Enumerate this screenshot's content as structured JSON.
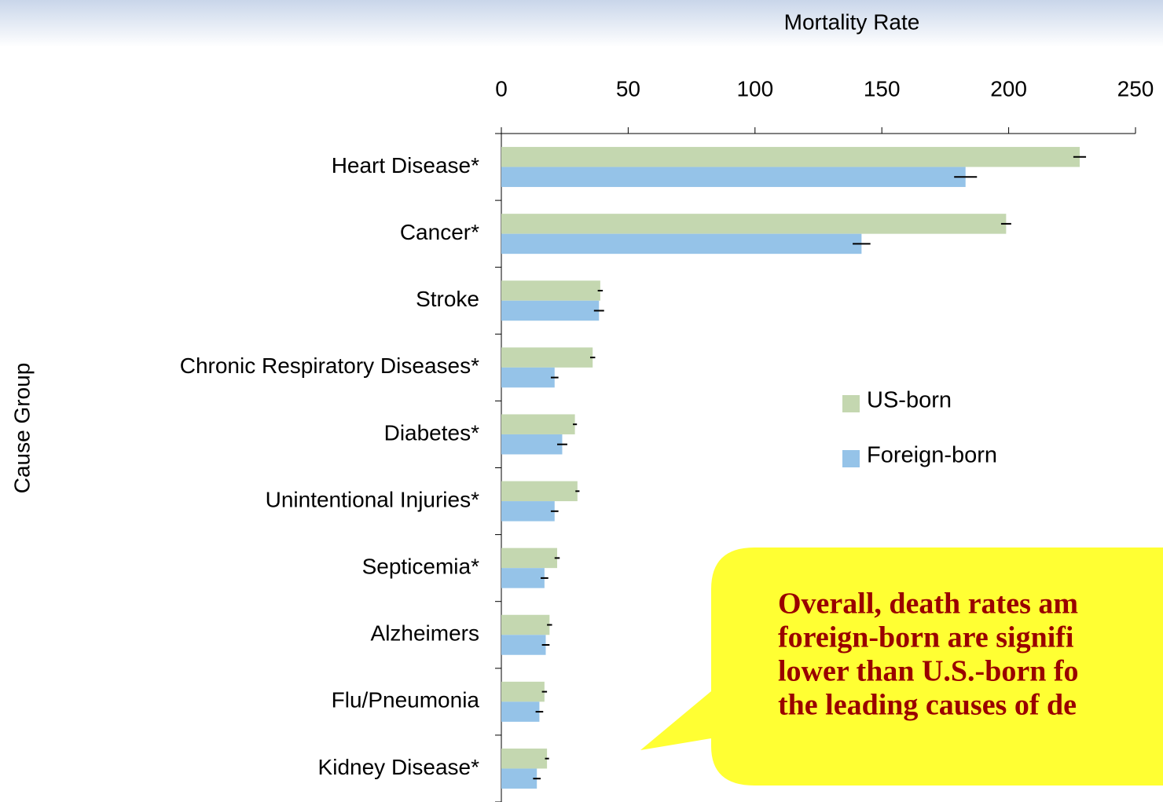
{
  "chart_data": {
    "type": "bar",
    "orientation": "horizontal",
    "xlabel": "Mortality Rate",
    "ylabel": "Cause Group",
    "categories": [
      "Heart Disease*",
      "Cancer*",
      "Stroke",
      "Chronic Respiratory Diseases*",
      "Diabetes*",
      "Unintentional Injuries*",
      "Septicemia*",
      "Alzheimers",
      "Flu/Pneumonia",
      "Kidney Disease*"
    ],
    "series": [
      {
        "name": "US-born",
        "color": "#c4d7b0",
        "values": [
          228,
          199,
          39,
          36,
          29,
          30,
          22,
          19,
          17,
          18
        ],
        "errors": [
          2.5,
          2,
          1,
          1,
          0.8,
          0.8,
          1,
          1,
          1,
          0.8
        ]
      },
      {
        "name": "Foreign-born",
        "color": "#95c3e8",
        "values": [
          183,
          142,
          38.5,
          21,
          24,
          21,
          17,
          17.5,
          15,
          14
        ],
        "errors": [
          4.5,
          3.5,
          2,
          1.5,
          2,
          1.5,
          1.5,
          1.5,
          1.5,
          1.5
        ]
      }
    ],
    "xlim": [
      0,
      250
    ],
    "xticks": [
      0,
      50,
      100,
      150,
      200,
      250
    ],
    "legend": "right",
    "annotation": [
      "Overall, death rates am",
      "foreign-born are signifi",
      "lower than U.S.-born fo",
      "the leading causes of de"
    ]
  }
}
